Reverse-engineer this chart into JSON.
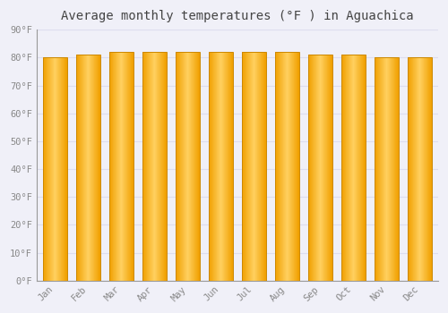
{
  "title": "Average monthly temperatures (°F ) in Aguachica",
  "months": [
    "Jan",
    "Feb",
    "Mar",
    "Apr",
    "May",
    "Jun",
    "Jul",
    "Aug",
    "Sep",
    "Oct",
    "Nov",
    "Dec"
  ],
  "values": [
    80,
    81,
    82,
    82,
    82,
    82,
    82,
    82,
    81,
    81,
    80,
    80
  ],
  "ylim": [
    0,
    90
  ],
  "yticks": [
    0,
    10,
    20,
    30,
    40,
    50,
    60,
    70,
    80,
    90
  ],
  "ytick_labels": [
    "0°F",
    "10°F",
    "20°F",
    "30°F",
    "40°F",
    "50°F",
    "60°F",
    "70°F",
    "80°F",
    "90°F"
  ],
  "bar_color_center": "#FFD060",
  "bar_color_edge": "#F0A000",
  "bar_border_color": "#CC8800",
  "background_color": "#F0F0F8",
  "plot_bg_color": "#F0F0F8",
  "grid_color": "#DDDDEE",
  "title_fontsize": 10,
  "tick_fontsize": 7.5,
  "tick_color": "#888888",
  "font_family": "monospace"
}
